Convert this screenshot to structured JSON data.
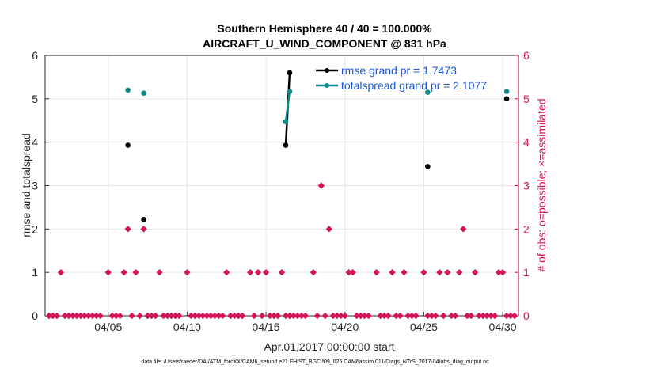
{
  "chart_data": {
    "type": "line",
    "title": "Southern Hemisphere 40 / 40 = 100.000%",
    "subtitle": "AIRCRAFT_U_WIND_COMPONENT @ 831 hPa",
    "xlabel": "Apr.01,2017 00:00:00 start",
    "ylabel": "rmse and totalspread",
    "y2label": "# of obs: o=possible; ×=assimilated",
    "xlim": [
      1,
      31
    ],
    "ylim": [
      0,
      6
    ],
    "y2lim": [
      0,
      6
    ],
    "x_ticks": [
      5,
      10,
      15,
      20,
      25,
      30
    ],
    "x_tick_labels": [
      "04/05",
      "04/10",
      "04/15",
      "04/20",
      "04/25",
      "04/30"
    ],
    "y_ticks": [
      0,
      1,
      2,
      3,
      4,
      5,
      6
    ],
    "y_tick_labels": [
      "0",
      "1",
      "2",
      "3",
      "4",
      "5",
      "6"
    ],
    "y2_tick_labels": [
      "0",
      "1",
      "2",
      "3",
      "4",
      "5",
      "6"
    ],
    "grid": true,
    "legend_position": "top-right",
    "series": [
      {
        "name": "rmse grand pr = 1.7473",
        "color": "#000000",
        "axis": "left",
        "points": [
          [
            6.25,
            3.93
          ],
          [
            7.25,
            2.22
          ],
          [
            16.25,
            3.93
          ],
          [
            16.5,
            5.6
          ],
          [
            25.25,
            3.44
          ],
          [
            30.25,
            5.0
          ]
        ]
      },
      {
        "name": "totalspread grand pr = 2.1077",
        "color": "#0f8a8a",
        "axis": "left",
        "points": [
          [
            6.25,
            5.2
          ],
          [
            7.25,
            5.13
          ],
          [
            16.25,
            4.47
          ],
          [
            16.5,
            5.17
          ],
          [
            25.25,
            5.15
          ],
          [
            30.25,
            5.17
          ]
        ]
      }
    ],
    "obs_counts": {
      "name": "# of obs",
      "color": "#d4145a",
      "axis": "right",
      "points": [
        [
          1.25,
          0
        ],
        [
          1.5,
          0
        ],
        [
          1.75,
          0
        ],
        [
          2.0,
          1
        ],
        [
          2.25,
          0
        ],
        [
          2.5,
          0
        ],
        [
          2.75,
          0
        ],
        [
          3.0,
          0
        ],
        [
          3.25,
          0
        ],
        [
          3.5,
          0
        ],
        [
          3.75,
          0
        ],
        [
          4.0,
          0
        ],
        [
          4.25,
          0
        ],
        [
          4.5,
          0
        ],
        [
          5.0,
          1
        ],
        [
          5.25,
          0
        ],
        [
          5.5,
          0
        ],
        [
          5.75,
          0
        ],
        [
          6.0,
          1
        ],
        [
          6.25,
          2
        ],
        [
          6.5,
          0
        ],
        [
          6.75,
          1
        ],
        [
          7.0,
          0
        ],
        [
          7.25,
          2
        ],
        [
          7.5,
          0
        ],
        [
          7.75,
          0
        ],
        [
          8.0,
          0
        ],
        [
          8.25,
          1
        ],
        [
          8.5,
          0
        ],
        [
          8.75,
          0
        ],
        [
          9.0,
          0
        ],
        [
          9.25,
          0
        ],
        [
          9.5,
          0
        ],
        [
          10.0,
          1
        ],
        [
          10.25,
          0
        ],
        [
          10.5,
          0
        ],
        [
          10.75,
          0
        ],
        [
          11.0,
          0
        ],
        [
          11.25,
          0
        ],
        [
          11.5,
          0
        ],
        [
          11.75,
          0
        ],
        [
          12.0,
          0
        ],
        [
          12.25,
          0
        ],
        [
          12.5,
          1
        ],
        [
          12.75,
          0
        ],
        [
          13.0,
          0
        ],
        [
          13.25,
          0
        ],
        [
          13.5,
          0
        ],
        [
          14.0,
          1
        ],
        [
          14.25,
          0
        ],
        [
          14.5,
          1
        ],
        [
          14.75,
          0
        ],
        [
          15.0,
          1
        ],
        [
          15.25,
          0
        ],
        [
          15.5,
          0
        ],
        [
          15.75,
          0
        ],
        [
          16.0,
          1
        ],
        [
          16.25,
          0
        ],
        [
          16.5,
          0
        ],
        [
          16.75,
          0
        ],
        [
          17.0,
          0
        ],
        [
          17.25,
          0
        ],
        [
          17.5,
          0
        ],
        [
          18.0,
          1
        ],
        [
          18.25,
          0
        ],
        [
          18.5,
          3
        ],
        [
          18.75,
          0
        ],
        [
          19.0,
          2
        ],
        [
          19.25,
          0
        ],
        [
          19.5,
          0
        ],
        [
          19.75,
          0
        ],
        [
          20.0,
          0
        ],
        [
          20.25,
          1
        ],
        [
          20.5,
          1
        ],
        [
          20.75,
          0
        ],
        [
          21.0,
          0
        ],
        [
          21.25,
          0
        ],
        [
          21.5,
          0
        ],
        [
          22.0,
          1
        ],
        [
          22.25,
          0
        ],
        [
          22.5,
          0
        ],
        [
          22.75,
          0
        ],
        [
          23.0,
          1
        ],
        [
          23.25,
          0
        ],
        [
          23.5,
          0
        ],
        [
          23.75,
          1
        ],
        [
          24.0,
          0
        ],
        [
          24.25,
          0
        ],
        [
          24.5,
          0
        ],
        [
          25.0,
          1
        ],
        [
          25.25,
          0
        ],
        [
          25.5,
          0
        ],
        [
          25.75,
          0
        ],
        [
          26.0,
          1
        ],
        [
          26.25,
          0
        ],
        [
          26.5,
          1
        ],
        [
          26.75,
          0
        ],
        [
          27.0,
          0
        ],
        [
          27.25,
          1
        ],
        [
          27.5,
          2
        ],
        [
          27.75,
          0
        ],
        [
          28.0,
          0
        ],
        [
          28.25,
          1
        ],
        [
          28.5,
          0
        ],
        [
          28.75,
          0
        ],
        [
          29.0,
          0
        ],
        [
          29.25,
          0
        ],
        [
          29.5,
          0
        ],
        [
          29.75,
          1
        ],
        [
          30.0,
          1
        ],
        [
          30.25,
          0
        ],
        [
          30.5,
          0
        ],
        [
          30.75,
          0
        ]
      ]
    },
    "footnote": "data file: /Users/raeder/DAI/ATM_forcXX/CAM6_setup/f.e21.FHIST_BGC.f09_025.CAM6assim.011/Diags_NTrS_2017-04/obs_diag_output.nc"
  }
}
